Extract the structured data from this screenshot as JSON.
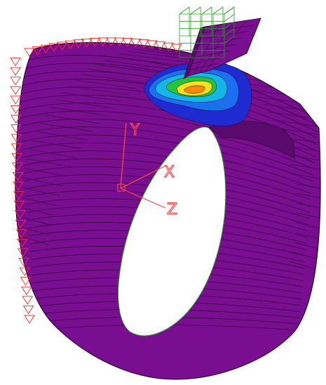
{
  "scene": {
    "colors": {
      "background": "#ffffff",
      "shell": "#7a0e91",
      "shell_dark": "#5a0a6d",
      "mesh_line": "#1c0522",
      "boundary_marker": "#ff2a2a",
      "axis": "#ff4a4a",
      "wireframe": "#1fa21f",
      "contour_blue_dark": "#1d2bd1",
      "contour_blue": "#1c6ff0",
      "contour_cyan": "#15b6e6",
      "contour_green": "#27c23c",
      "contour_yellow": "#f7e21c",
      "contour_orange": "#ff8a00"
    },
    "axes": {
      "x_label": "X",
      "y_label": "Y",
      "z_label": "Z"
    }
  }
}
